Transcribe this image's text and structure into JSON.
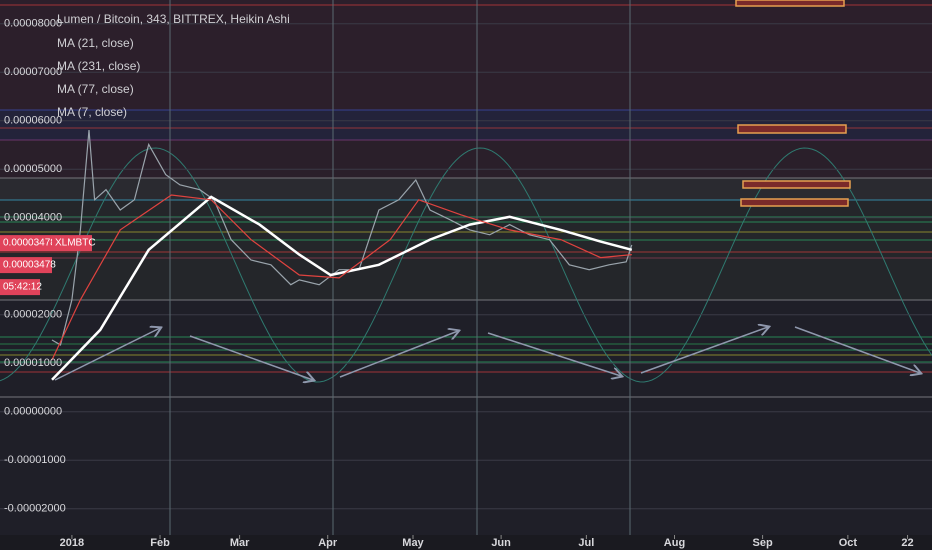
{
  "chart_data": {
    "type": "line",
    "title": "Lumen / Bitcoin, 343, BITTREX, Heikin Ashi",
    "legend": [
      "MA (21, close)",
      "MA (231, close)",
      "MA (77, close)",
      "MA (7, close)"
    ],
    "symbol": "XLMBTC",
    "countdown": "05:42:12",
    "price_labels": [
      3.478e-05,
      3.478e-05
    ],
    "xlim": [
      -25.3,
      302.6
    ],
    "xticks": [
      {
        "value": 0,
        "label": "2018"
      },
      {
        "value": 31,
        "label": "Feb"
      },
      {
        "value": 59,
        "label": "Mar"
      },
      {
        "value": 90,
        "label": "Apr"
      },
      {
        "value": 120,
        "label": "May"
      },
      {
        "value": 151,
        "label": "Jun"
      },
      {
        "value": 181,
        "label": "Jul"
      },
      {
        "value": 212,
        "label": "Aug"
      },
      {
        "value": 243,
        "label": "Sep"
      },
      {
        "value": 273,
        "label": "Oct"
      },
      {
        "value": 294,
        "label": "22"
      }
    ],
    "ylim": [
      -2.54e-05,
      8.49e-05
    ],
    "yticks": [
      {
        "value": 8e-05,
        "label": "0.00008000"
      },
      {
        "value": 7e-05,
        "label": "0.00007000"
      },
      {
        "value": 6e-05,
        "label": "0.00006000"
      },
      {
        "value": 5e-05,
        "label": "0.00005000"
      },
      {
        "value": 4e-05,
        "label": "0.00004000"
      },
      {
        "value": 2e-05,
        "label": "0.00002000"
      },
      {
        "value": 1e-05,
        "label": "0.00001000"
      },
      {
        "value": 0,
        "label": "0.00000000"
      },
      {
        "value": -1e-05,
        "label": "-0.00001000"
      },
      {
        "value": -2e-05,
        "label": "-0.00002000"
      }
    ],
    "grid": true,
    "series": [
      {
        "color": "#9aa4ac",
        "width": 1.2,
        "x": [
          -7,
          -4,
          0,
          3,
          6,
          8,
          12,
          17,
          22,
          27,
          33,
          38,
          45,
          50,
          56,
          63,
          70,
          77,
          80,
          87,
          94,
          101,
          108,
          115,
          121,
          126,
          133,
          140,
          147,
          154,
          161,
          168,
          175,
          182,
          189,
          195,
          197
        ],
        "values": [
          1.48e-05,
          1.38e-05,
          2.31e-05,
          3.75e-05,
          5.81e-05,
          4.37e-05,
          4.58e-05,
          4.16e-05,
          4.37e-05,
          5.51e-05,
          4.89e-05,
          4.68e-05,
          4.58e-05,
          4.37e-05,
          3.55e-05,
          3.13e-05,
          3.03e-05,
          2.62e-05,
          2.72e-05,
          2.62e-05,
          2.93e-05,
          2.93e-05,
          4.16e-05,
          4.37e-05,
          4.78e-05,
          4.16e-05,
          3.96e-05,
          3.75e-05,
          3.65e-05,
          3.86e-05,
          3.65e-05,
          3.55e-05,
          3.03e-05,
          2.93e-05,
          3.03e-05,
          3.09e-05,
          3.44e-05
        ]
      },
      {
        "color": "#ffffff",
        "width": 2.5,
        "x": [
          -7,
          10,
          27,
          49,
          66,
          80,
          91,
          108,
          126,
          140,
          154,
          172,
          186,
          197
        ],
        "values": [
          6.6e-06,
          1.69e-05,
          3.34e-05,
          4.43e-05,
          3.86e-05,
          3.24e-05,
          2.82e-05,
          3.03e-05,
          3.55e-05,
          3.86e-05,
          4.02e-05,
          3.75e-05,
          3.51e-05,
          3.34e-05
        ]
      },
      {
        "color": "#e0433f",
        "width": 1.2,
        "x": [
          -7,
          3,
          17,
          35,
          49,
          63,
          80,
          94,
          112,
          122,
          137,
          154,
          172,
          186,
          197
        ],
        "values": [
          1.07e-05,
          2.31e-05,
          3.75e-05,
          4.47e-05,
          4.37e-05,
          3.55e-05,
          2.82e-05,
          2.76e-05,
          3.55e-05,
          4.37e-05,
          4.06e-05,
          3.75e-05,
          3.55e-05,
          3.18e-05,
          3.24e-05
        ]
      }
    ]
  }
}
